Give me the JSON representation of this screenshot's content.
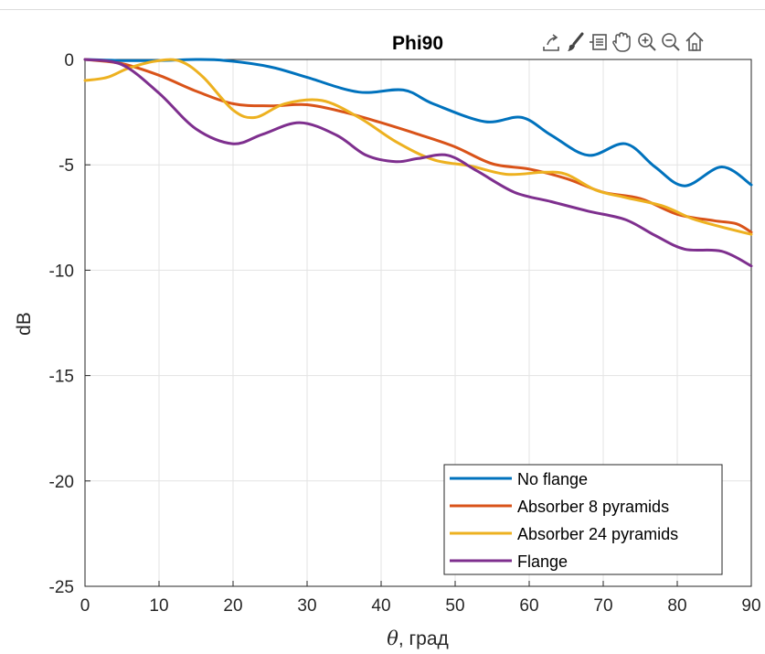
{
  "chart_data": {
    "type": "line",
    "title": "Phi90",
    "xlabel_symbol": "θ",
    "xlabel_rest": ", град",
    "ylabel": "dB",
    "xlim": [
      0,
      90
    ],
    "ylim": [
      -25,
      0
    ],
    "xticks": [
      0,
      10,
      20,
      30,
      40,
      50,
      60,
      70,
      80,
      90
    ],
    "yticks": [
      0,
      -5,
      -10,
      -15,
      -20,
      -25
    ],
    "grid": true,
    "legend_position": "bottom-right",
    "series": [
      {
        "name": "No flange",
        "color": "#0072BD",
        "x": [
          0,
          5,
          10,
          15,
          19,
          25,
          30,
          37,
          43,
          47,
          54,
          59,
          63,
          68,
          73,
          77,
          81,
          86,
          90
        ],
        "y": [
          0,
          -0.05,
          -0.05,
          0,
          -0.05,
          -0.35,
          -0.85,
          -1.55,
          -1.45,
          -2.1,
          -2.95,
          -2.75,
          -3.6,
          -4.55,
          -4.0,
          -5.1,
          -6.0,
          -5.1,
          -5.95
        ]
      },
      {
        "name": "Absorber 8 pyramids",
        "color": "#D95319",
        "x": [
          0,
          5,
          10,
          15,
          20,
          25,
          30,
          35,
          40,
          45,
          50,
          55,
          60,
          65,
          70,
          75,
          80,
          85,
          88,
          90
        ],
        "y": [
          0,
          -0.2,
          -0.75,
          -1.5,
          -2.1,
          -2.2,
          -2.15,
          -2.5,
          -3.0,
          -3.55,
          -4.15,
          -4.95,
          -5.2,
          -5.65,
          -6.3,
          -6.6,
          -7.35,
          -7.65,
          -7.8,
          -8.2
        ]
      },
      {
        "name": "Absorber 24 pyramids",
        "color": "#EDB120",
        "x": [
          0,
          3,
          6,
          10,
          13,
          16,
          20,
          23,
          27,
          32,
          37,
          42,
          47,
          52,
          57,
          62,
          65,
          69,
          73,
          78,
          82,
          86,
          90
        ],
        "y": [
          -1.0,
          -0.85,
          -0.4,
          -0.05,
          -0.1,
          -0.85,
          -2.4,
          -2.75,
          -2.1,
          -1.95,
          -2.75,
          -3.9,
          -4.75,
          -5.05,
          -5.45,
          -5.35,
          -5.45,
          -6.2,
          -6.55,
          -6.95,
          -7.55,
          -7.95,
          -8.3
        ]
      },
      {
        "name": "Flange",
        "color": "#7E2F8E",
        "x": [
          0,
          5,
          10,
          15,
          20,
          24,
          29,
          34,
          38,
          42,
          45,
          49,
          53,
          58,
          63,
          68,
          73,
          77,
          81,
          86,
          90
        ],
        "y": [
          0,
          -0.25,
          -1.6,
          -3.3,
          -4.0,
          -3.55,
          -3.0,
          -3.6,
          -4.55,
          -4.85,
          -4.7,
          -4.55,
          -5.3,
          -6.3,
          -6.75,
          -7.2,
          -7.6,
          -8.35,
          -9.0,
          -9.1,
          -9.8
        ]
      }
    ]
  },
  "toolbar": {
    "icons": [
      "export-icon",
      "brush-icon",
      "data-tips-icon",
      "pan-icon",
      "zoom-in-icon",
      "zoom-out-icon",
      "home-icon"
    ]
  }
}
